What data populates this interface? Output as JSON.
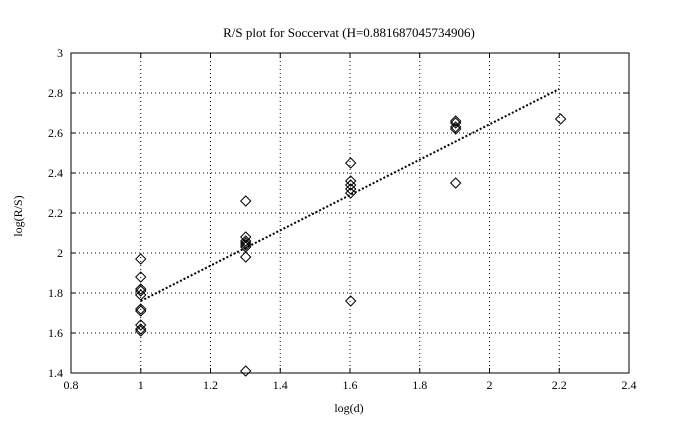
{
  "chart_data": {
    "type": "scatter",
    "title": "R/S plot for Soccervat (H=0.881687045734906)",
    "xlabel": "log(d)",
    "ylabel": "log(R/S)",
    "xlim": [
      0.8,
      2.4
    ],
    "ylim": [
      1.4,
      3.0
    ],
    "xticks": [
      0.8,
      1,
      1.2,
      1.4,
      1.6,
      1.8,
      2,
      2.2,
      2.4
    ],
    "yticks": [
      1.4,
      1.6,
      1.8,
      2,
      2.2,
      2.4,
      2.6,
      2.8,
      3
    ],
    "grid": true,
    "marker": "diamond",
    "colors": {
      "points": "#000000",
      "fit_line": "#000000",
      "grid": "#000000"
    },
    "series": [
      {
        "x": [
          1,
          1,
          1,
          1,
          1,
          1,
          1,
          1,
          1,
          1,
          1.301,
          1.301,
          1.301,
          1.301,
          1.301,
          1.301,
          1.301,
          1.301,
          1.602,
          1.602,
          1.602,
          1.602,
          1.602,
          1.602,
          1.903,
          1.903,
          1.903,
          1.903,
          1.903,
          2.204
        ],
        "y": [
          1.97,
          1.88,
          1.82,
          1.81,
          1.79,
          1.72,
          1.71,
          1.64,
          1.62,
          1.61,
          2.26,
          2.08,
          2.06,
          2.05,
          2.04,
          2.03,
          1.98,
          1.41,
          2.45,
          2.36,
          2.34,
          2.32,
          2.3,
          1.76,
          2.66,
          2.65,
          2.63,
          2.62,
          2.35,
          2.67
        ]
      }
    ],
    "fit_line": {
      "x": [
        1,
        2.2
      ],
      "y": [
        1.76,
        2.82
      ]
    }
  }
}
